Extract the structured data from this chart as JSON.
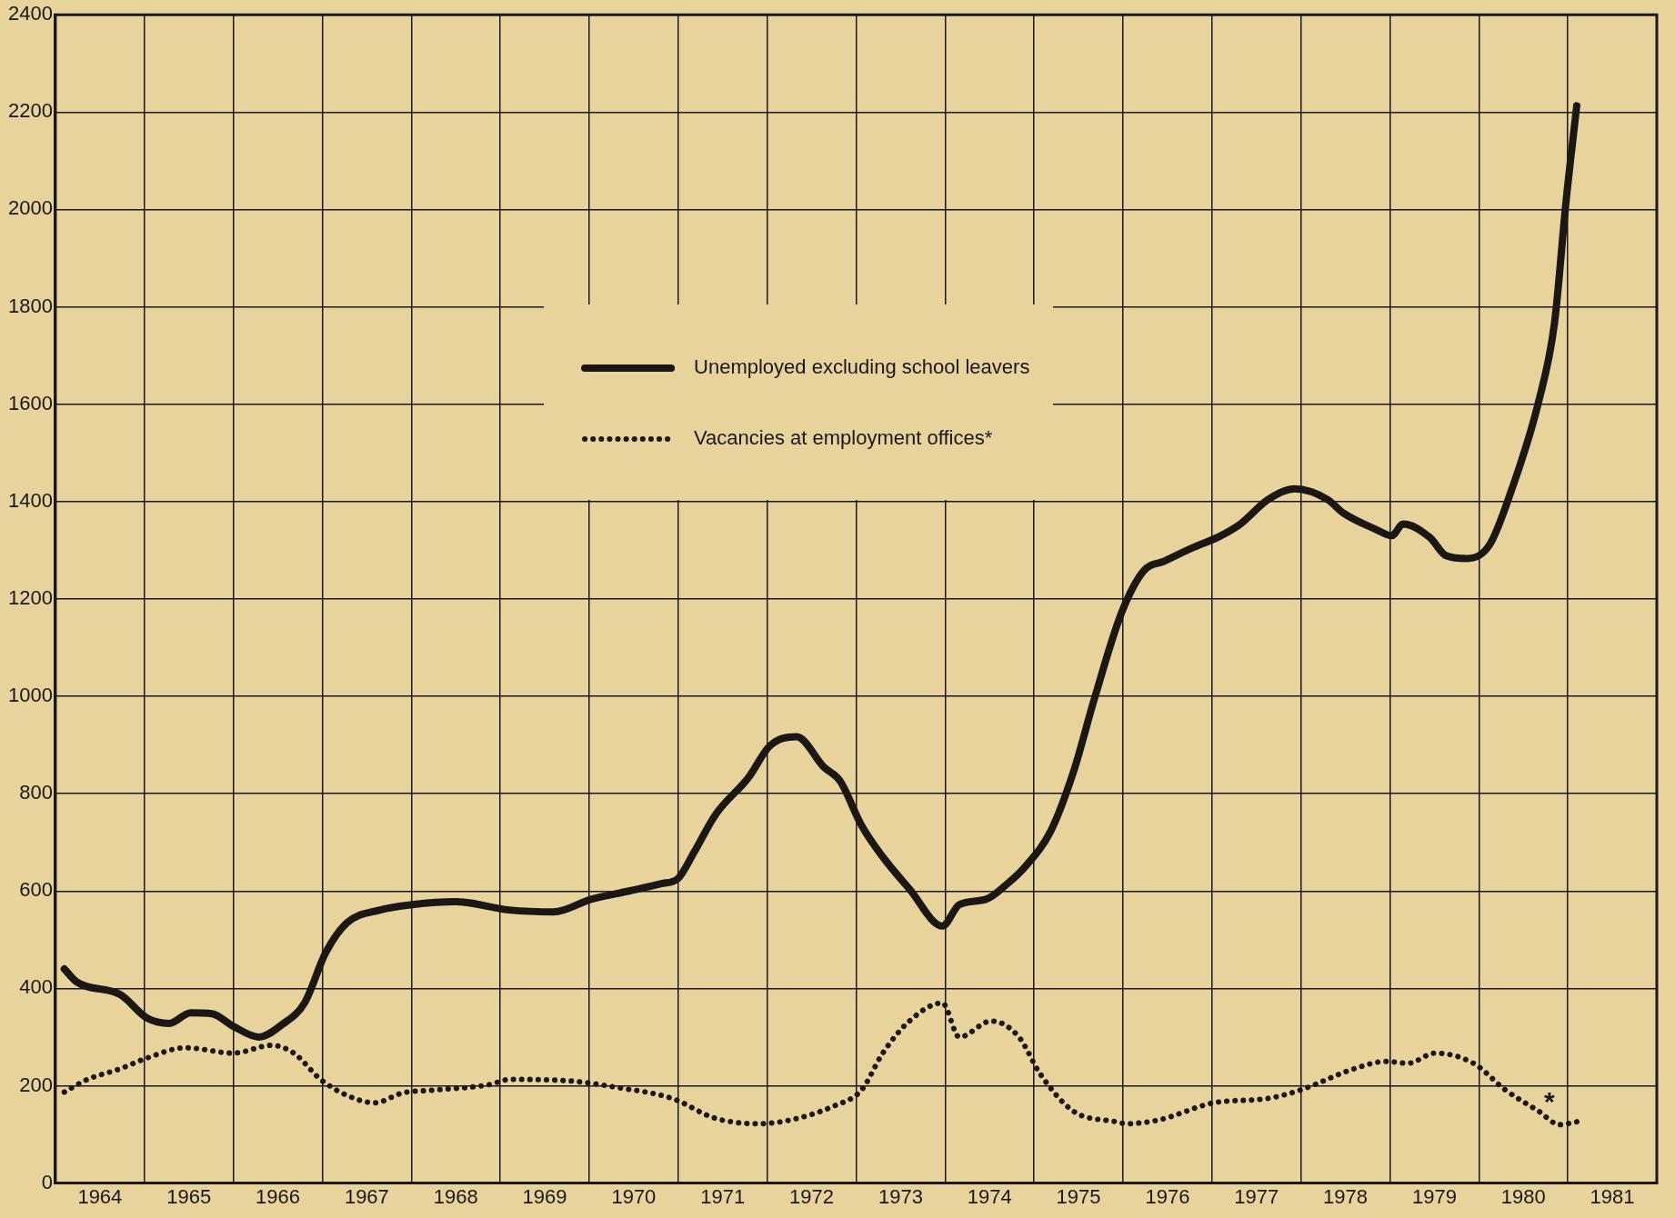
{
  "chart_data": {
    "type": "line",
    "xlim": [
      1964,
      1982
    ],
    "xticks": [
      {
        "value": 1964,
        "label": null
      },
      {
        "value": 1964.5,
        "label": "1964"
      },
      {
        "value": 1965,
        "label": null
      },
      {
        "value": 1965.5,
        "label": "1965"
      },
      {
        "value": 1966,
        "label": null
      },
      {
        "value": 1966.5,
        "label": "1966"
      },
      {
        "value": 1967,
        "label": null
      },
      {
        "value": 1967.5,
        "label": "1967"
      },
      {
        "value": 1968,
        "label": null
      },
      {
        "value": 1968.5,
        "label": "1968"
      },
      {
        "value": 1969,
        "label": null
      },
      {
        "value": 1969.5,
        "label": "1969"
      },
      {
        "value": 1970,
        "label": null
      },
      {
        "value": 1970.5,
        "label": "1970"
      },
      {
        "value": 1971,
        "label": null
      },
      {
        "value": 1971.5,
        "label": "1971"
      },
      {
        "value": 1972,
        "label": null
      },
      {
        "value": 1972.5,
        "label": "1972"
      },
      {
        "value": 1973,
        "label": null
      },
      {
        "value": 1973.5,
        "label": "1973"
      },
      {
        "value": 1974,
        "label": null
      },
      {
        "value": 1974.5,
        "label": "1974"
      },
      {
        "value": 1975,
        "label": null
      },
      {
        "value": 1975.5,
        "label": "1975"
      },
      {
        "value": 1976,
        "label": null
      },
      {
        "value": 1976.5,
        "label": "1976"
      },
      {
        "value": 1977,
        "label": null
      },
      {
        "value": 1977.5,
        "label": "1977"
      },
      {
        "value": 1978,
        "label": null
      },
      {
        "value": 1978.5,
        "label": "1978"
      },
      {
        "value": 1979,
        "label": null
      },
      {
        "value": 1979.5,
        "label": "1979"
      },
      {
        "value": 1980,
        "label": null
      },
      {
        "value": 1980.5,
        "label": "1980"
      },
      {
        "value": 1981,
        "label": null
      },
      {
        "value": 1981.5,
        "label": "1981"
      },
      {
        "value": 1982,
        "label": null
      }
    ],
    "ylim": [
      0,
      2400
    ],
    "yticks": [
      0,
      200,
      400,
      600,
      800,
      1000,
      1200,
      1400,
      1600,
      1800,
      2000,
      2200,
      2400
    ],
    "grid": true,
    "legend": "top",
    "marker": "none",
    "series": [
      {
        "name": "Unemployed excluding school leavers",
        "color": "#1a1714",
        "line_style": "solid",
        "x": [
          1964.1,
          1964.24,
          1964.73,
          1965.03,
          1965.28,
          1965.52,
          1965.76,
          1966.0,
          1966.29,
          1966.55,
          1966.8,
          1967.04,
          1967.28,
          1967.65,
          1968.01,
          1968.5,
          1969.1,
          1969.6,
          1970.02,
          1970.45,
          1970.81,
          1971.0,
          1971.18,
          1971.42,
          1971.79,
          1972.03,
          1972.33,
          1972.64,
          1972.82,
          1973.06,
          1973.3,
          1973.6,
          1973.97,
          1974.16,
          1974.46,
          1974.7,
          1974.89,
          1975.19,
          1975.44,
          1975.68,
          1975.98,
          1976.23,
          1976.47,
          1976.77,
          1977.08,
          1977.32,
          1977.63,
          1977.93,
          1978.3,
          1978.48,
          1978.84,
          1979.02,
          1979.15,
          1979.45,
          1979.63,
          1979.87,
          1980.12,
          1980.36,
          1980.67,
          1980.85,
          1980.98,
          1981.1
        ],
        "values": [
          440,
          413,
          387,
          339,
          328,
          350,
          348,
          322,
          300,
          326,
          370,
          474,
          535,
          561,
          572,
          578,
          561,
          557,
          583,
          600,
          615,
          626,
          680,
          757,
          833,
          898,
          917,
          854,
          826,
          735,
          670,
          604,
          528,
          572,
          583,
          615,
          648,
          724,
          843,
          996,
          1170,
          1257,
          1278,
          1304,
          1328,
          1354,
          1404,
          1426,
          1404,
          1376,
          1343,
          1330,
          1354,
          1326,
          1289,
          1283,
          1311,
          1420,
          1604,
          1767,
          2017,
          2213
        ]
      },
      {
        "name": "Vacancies at employment offices*",
        "color": "#1a1714",
        "line_style": "dotted",
        "x": [
          1964.1,
          1964.36,
          1964.73,
          1965.03,
          1965.46,
          1966.0,
          1966.43,
          1966.68,
          1966.98,
          1967.28,
          1967.59,
          1967.9,
          1968.26,
          1968.87,
          1969.11,
          1969.84,
          1970.33,
          1970.93,
          1971.42,
          1971.91,
          1972.27,
          1972.76,
          1973.06,
          1973.3,
          1973.6,
          1973.97,
          1974.16,
          1974.52,
          1974.83,
          1975.07,
          1975.44,
          1975.92,
          1976.04,
          1976.41,
          1977.02,
          1977.63,
          1977.99,
          1978.6,
          1978.96,
          1979.2,
          1979.51,
          1979.94,
          1980.3,
          1980.67,
          1980.91,
          1981.1
        ],
        "values": [
          187,
          213,
          235,
          257,
          278,
          267,
          283,
          267,
          213,
          180,
          165,
          185,
          191,
          202,
          213,
          209,
          196,
          174,
          133,
          122,
          130,
          159,
          191,
          267,
          333,
          370,
          300,
          333,
          300,
          224,
          148,
          126,
          122,
          130,
          165,
          174,
          191,
          235,
          250,
          246,
          267,
          246,
          191,
          148,
          120,
          126
        ]
      }
    ],
    "annotations": [
      "*"
    ]
  }
}
